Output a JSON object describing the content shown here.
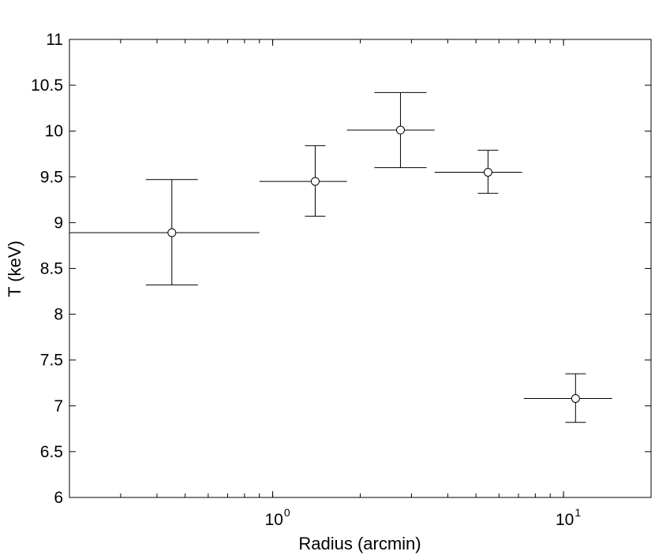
{
  "chart_data": {
    "type": "scatter",
    "title": "",
    "xlabel": "Radius (arcmin)",
    "ylabel": "T (keV)",
    "x_scale": "log",
    "xlim": [
      0.2,
      20
    ],
    "ylim": [
      6,
      11
    ],
    "y_ticks": [
      "6",
      "6.5",
      "7",
      "7.5",
      "8",
      "8.5",
      "9",
      "9.5",
      "10",
      "10.5",
      "11"
    ],
    "x_ticks": [
      {
        "value": 1,
        "base": "10",
        "exponent": "0"
      },
      {
        "value": 10,
        "base": "10",
        "exponent": "1"
      }
    ],
    "marker": "open-circle",
    "grid": false,
    "legend": "none",
    "points": [
      {
        "x": 0.45,
        "x_low": 0.2,
        "x_high": 0.9,
        "y": 8.89,
        "y_low": 8.32,
        "y_high": 9.47
      },
      {
        "x": 1.4,
        "x_low": 0.9,
        "x_high": 1.8,
        "y": 9.45,
        "y_low": 9.07,
        "y_high": 9.84
      },
      {
        "x": 2.75,
        "x_low": 1.8,
        "x_high": 3.6,
        "y": 10.01,
        "y_low": 9.6,
        "y_high": 10.42
      },
      {
        "x": 5.5,
        "x_low": 3.6,
        "x_high": 7.2,
        "y": 9.55,
        "y_low": 9.32,
        "y_high": 9.79
      },
      {
        "x": 11.0,
        "x_low": 7.3,
        "x_high": 14.7,
        "y": 7.08,
        "y_low": 6.82,
        "y_high": 7.35
      }
    ]
  }
}
